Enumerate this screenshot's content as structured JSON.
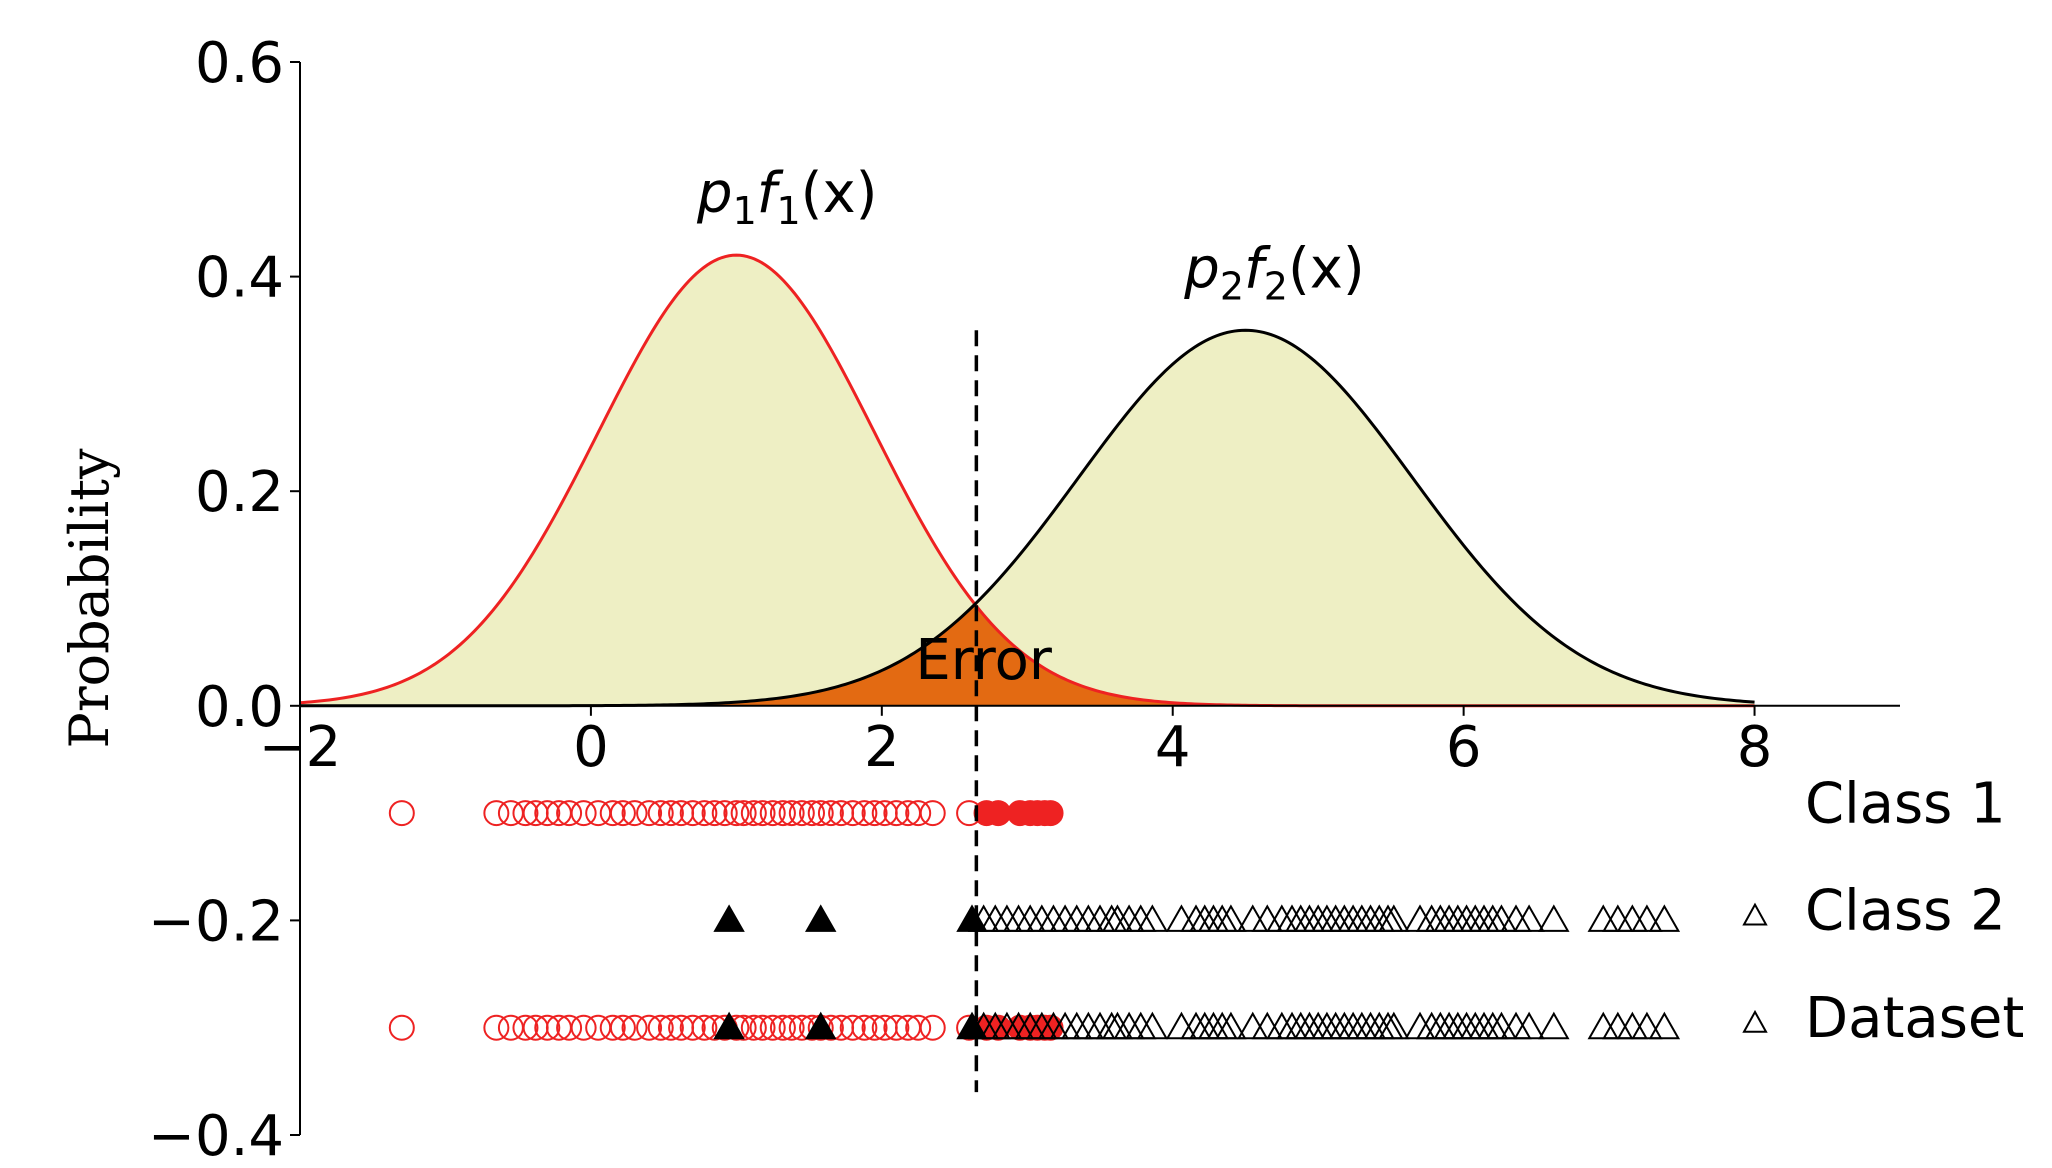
{
  "chart_data": {
    "type": "line",
    "title": "",
    "xlabel": "",
    "ylabel": "Probability",
    "xlim": [
      -2,
      9
    ],
    "ylim": [
      -0.4,
      0.6
    ],
    "x_ticks": [
      "−2",
      "0",
      "2",
      "4",
      "6",
      "8"
    ],
    "x_tick_values": [
      -2,
      0,
      2,
      4,
      6,
      8
    ],
    "y_ticks": [
      "−0.4",
      "−0.2",
      "0.0",
      "0.2",
      "0.4",
      "0.6"
    ],
    "y_tick_values": [
      -0.4,
      -0.2,
      0.0,
      0.2,
      0.4,
      0.6
    ],
    "grid": false,
    "decision_boundary_x": 2.65,
    "decision_boundary_yrange": [
      -0.36,
      0.35
    ],
    "fill_color": "#eeefc4",
    "error_fill_color": "#e36a12",
    "colors": {
      "class1": "#ee2222",
      "class2": "#000000",
      "curve1": "#ee2222",
      "curve2": "#000000"
    },
    "curves": [
      {
        "name": "p1f1(x)",
        "label_main_1": "p",
        "label_sub_1": "1",
        "label_main_2": "f",
        "label_sub_2": "1",
        "label_tail": "(x)",
        "mean": 1.0,
        "std": 0.95,
        "peak": 0.42,
        "x_range": [
          -2,
          8
        ],
        "label_at": [
          1.35,
          0.46
        ]
      },
      {
        "name": "p2f2(x)",
        "label_main_1": "p",
        "label_sub_1": "2",
        "label_main_2": "f",
        "label_sub_2": "2",
        "label_tail": "(x)",
        "mean": 4.5,
        "std": 1.15,
        "peak": 0.35,
        "x_range": [
          -2,
          8
        ],
        "label_at": [
          4.7,
          0.39
        ]
      }
    ],
    "error_label": "Error",
    "error_label_at": [
      2.7,
      0.025
    ],
    "series": [
      {
        "name": "Class 1",
        "y": -0.1,
        "hollow_x": [
          -1.3,
          -0.65,
          -0.55,
          -0.45,
          -0.38,
          -0.3,
          -0.22,
          -0.15,
          -0.05,
          0.05,
          0.15,
          0.22,
          0.3,
          0.4,
          0.48,
          0.55,
          0.62,
          0.7,
          0.78,
          0.85,
          0.92,
          1.0,
          1.05,
          1.12,
          1.18,
          1.25,
          1.32,
          1.38,
          1.45,
          1.52,
          1.58,
          1.65,
          1.72,
          1.8,
          1.88,
          1.95,
          2.02,
          2.1,
          2.18,
          2.25,
          2.35,
          2.6
        ],
        "filled_x": [
          2.72,
          2.8,
          2.95,
          3.02,
          3.07,
          3.12,
          3.16
        ]
      },
      {
        "name": "Class 2",
        "y": -0.2,
        "filled_x": [
          0.95,
          1.58,
          2.62
        ],
        "hollow_x": [
          2.7,
          2.78,
          2.86,
          2.94,
          3.02,
          3.1,
          3.18,
          3.26,
          3.34,
          3.42,
          3.5,
          3.58,
          3.62,
          3.7,
          3.78,
          3.86,
          4.06,
          4.16,
          4.22,
          4.28,
          4.34,
          4.4,
          4.55,
          4.65,
          4.75,
          4.82,
          4.88,
          4.94,
          5.0,
          5.06,
          5.12,
          5.18,
          5.24,
          5.3,
          5.36,
          5.42,
          5.48,
          5.52,
          5.7,
          5.78,
          5.84,
          5.9,
          5.96,
          6.02,
          6.08,
          6.14,
          6.2,
          6.26,
          6.36,
          6.45,
          6.62,
          6.96,
          7.06,
          7.16,
          7.26,
          7.38
        ]
      }
    ],
    "dataset_y": -0.3,
    "legend": [
      {
        "label": "Class 1",
        "marker": "none"
      },
      {
        "label": "Class 2",
        "marker": "triangle-hollow"
      },
      {
        "label": "Dataset",
        "marker": "triangle-hollow"
      }
    ]
  }
}
